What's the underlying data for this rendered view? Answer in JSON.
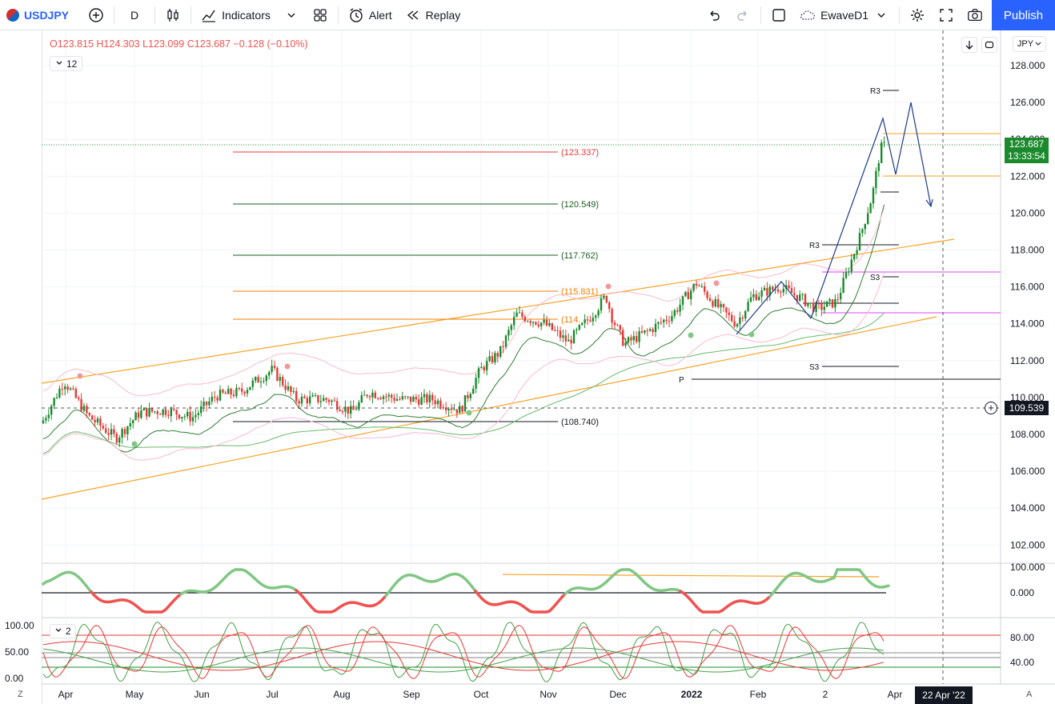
{
  "toolbar": {
    "symbol": "USDJPY",
    "interval": "D",
    "indicators_label": "Indicators",
    "alert_label": "Alert",
    "replay_label": "Replay",
    "layout_name": "EwaveD1",
    "publish_label": "Publish"
  },
  "legend": {
    "open": "O123.815",
    "high": "H124.303",
    "low": "L123.099",
    "close": "C123.687",
    "change": "−0.128 (−0.10%)",
    "badge": "12",
    "badge2": "2"
  },
  "axis": {
    "currency": "JPY",
    "current_price": "123.687",
    "countdown": "13:33:54",
    "crosshair_price": "109.539",
    "crosshair_date": "22 Apr '22",
    "price_ticks": [
      "128.000",
      "126.000",
      "124.000",
      "122.000",
      "120.000",
      "118.000",
      "116.000",
      "114.000",
      "112.000",
      "110.000",
      "108.000",
      "106.000",
      "104.000",
      "102.000"
    ],
    "osc1_ticks": [
      "100.000",
      "0.000"
    ],
    "osc2_ticks": [
      "80.00",
      "40.00"
    ],
    "osc2_left_ticks": [
      "100.00",
      "50.00",
      "0.00"
    ],
    "x_ticks": [
      "Apr",
      "May",
      "Jun",
      "Jul",
      "Aug",
      "Sep",
      "Oct",
      "Nov",
      "Dec",
      "2022",
      "Feb",
      "2",
      "Apr"
    ],
    "left_btn": "Z",
    "right_btn": "A"
  },
  "annotations": {
    "fib_levels": [
      "(123.337)",
      "(120.549)",
      "(117.762)",
      "(115.831)",
      "(114.",
      "(108.740)"
    ],
    "pivot_labels": [
      "R3",
      "R3",
      "S3",
      "S3",
      "P"
    ]
  },
  "colors": {
    "up": "#26a69a",
    "candle_up": "#1b8a2d",
    "candle_down": "#e53935",
    "accent": "#2962ff",
    "orange": "#f7a325"
  }
}
